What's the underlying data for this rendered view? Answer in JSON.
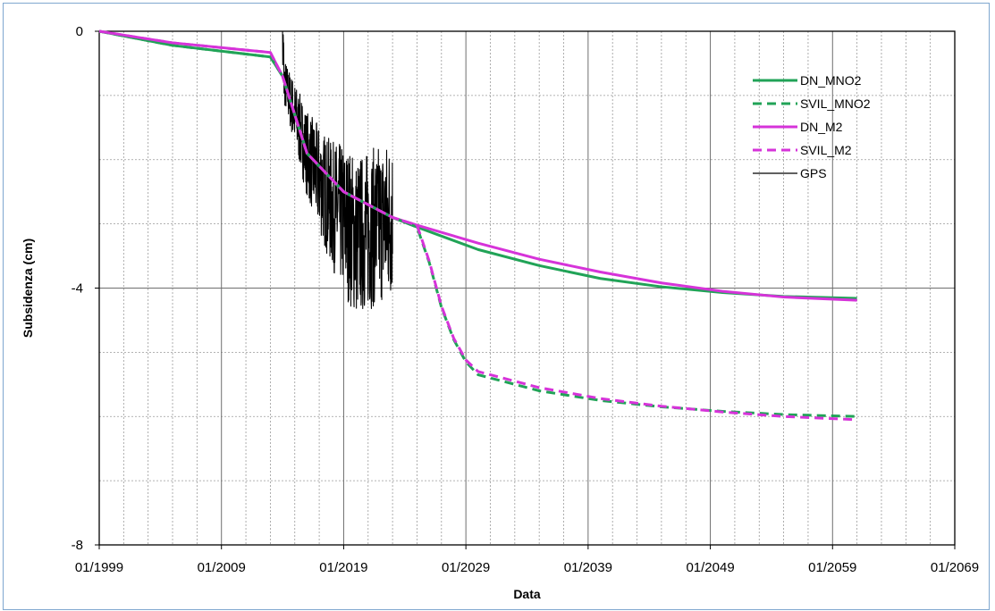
{
  "chart_data": {
    "type": "line",
    "title": "",
    "xlabel": "Data",
    "ylabel": "Subsidenza (cm)",
    "xlim": [
      "01/1999",
      "01/2069"
    ],
    "ylim": [
      -8,
      0
    ],
    "x_ticks": [
      "01/1999",
      "01/2009",
      "01/2019",
      "01/2029",
      "01/2039",
      "01/2049",
      "01/2059",
      "01/2069"
    ],
    "y_ticks": [
      "0",
      "-4",
      "-8"
    ],
    "grid": true,
    "legend_position": "top-right",
    "series": [
      {
        "name": "DN_MNO2",
        "color": "#21a357",
        "dash": "solid",
        "points": [
          [
            "01/1999",
            0
          ],
          [
            "01/2005",
            -0.22
          ],
          [
            "01/2013",
            -0.4
          ],
          [
            "01/2014",
            -0.7
          ],
          [
            "01/2016",
            -1.9
          ],
          [
            "01/2019",
            -2.5
          ],
          [
            "01/2023",
            -2.9
          ],
          [
            "01/2025",
            -3.05
          ],
          [
            "01/2030",
            -3.4
          ],
          [
            "01/2035",
            -3.65
          ],
          [
            "01/2040",
            -3.85
          ],
          [
            "01/2045",
            -3.98
          ],
          [
            "01/2050",
            -4.07
          ],
          [
            "01/2055",
            -4.13
          ],
          [
            "01/2061",
            -4.16
          ]
        ]
      },
      {
        "name": "SVIL_MNO2",
        "color": "#21a357",
        "dash": "dashed",
        "points": [
          [
            "01/1999",
            0
          ],
          [
            "01/2005",
            -0.22
          ],
          [
            "01/2013",
            -0.4
          ],
          [
            "01/2014",
            -0.7
          ],
          [
            "01/2016",
            -1.9
          ],
          [
            "01/2019",
            -2.5
          ],
          [
            "01/2023",
            -2.9
          ],
          [
            "01/2025",
            -3.05
          ],
          [
            "01/2026",
            -3.6
          ],
          [
            "01/2027",
            -4.3
          ],
          [
            "01/2028",
            -4.8
          ],
          [
            "01/2029",
            -5.15
          ],
          [
            "01/2030",
            -5.35
          ],
          [
            "01/2035",
            -5.6
          ],
          [
            "01/2040",
            -5.75
          ],
          [
            "01/2045",
            -5.85
          ],
          [
            "01/2050",
            -5.92
          ],
          [
            "01/2055",
            -5.97
          ],
          [
            "01/2061",
            -6.0
          ]
        ]
      },
      {
        "name": "DN_M2",
        "color": "#d633d9",
        "dash": "solid",
        "points": [
          [
            "01/1999",
            0
          ],
          [
            "01/2005",
            -0.18
          ],
          [
            "01/2013",
            -0.33
          ],
          [
            "01/2014",
            -0.7
          ],
          [
            "01/2016",
            -1.9
          ],
          [
            "01/2019",
            -2.5
          ],
          [
            "01/2023",
            -2.9
          ],
          [
            "01/2025",
            -3.02
          ],
          [
            "01/2030",
            -3.3
          ],
          [
            "01/2035",
            -3.55
          ],
          [
            "01/2040",
            -3.75
          ],
          [
            "01/2045",
            -3.92
          ],
          [
            "01/2050",
            -4.05
          ],
          [
            "01/2055",
            -4.14
          ],
          [
            "01/2061",
            -4.19
          ]
        ]
      },
      {
        "name": "SVIL_M2",
        "color": "#d633d9",
        "dash": "dashed",
        "points": [
          [
            "01/1999",
            0
          ],
          [
            "01/2005",
            -0.18
          ],
          [
            "01/2013",
            -0.33
          ],
          [
            "01/2014",
            -0.7
          ],
          [
            "01/2016",
            -1.9
          ],
          [
            "01/2019",
            -2.5
          ],
          [
            "01/2023",
            -2.9
          ],
          [
            "01/2025",
            -3.02
          ],
          [
            "01/2026",
            -3.58
          ],
          [
            "01/2027",
            -4.28
          ],
          [
            "01/2028",
            -4.78
          ],
          [
            "01/2029",
            -5.12
          ],
          [
            "01/2030",
            -5.3
          ],
          [
            "01/2035",
            -5.55
          ],
          [
            "01/2040",
            -5.72
          ],
          [
            "01/2045",
            -5.84
          ],
          [
            "01/2050",
            -5.93
          ],
          [
            "01/2055",
            -6.0
          ],
          [
            "01/2061",
            -6.05
          ]
        ]
      },
      {
        "name": "GPS",
        "color": "#000000",
        "dash": "solid",
        "x_range": [
          "01/2014",
          "01/2023"
        ],
        "noisy": true,
        "points": [
          [
            "01/2014",
            -0.7
          ],
          [
            "01/2015",
            -1.3
          ],
          [
            "01/2016",
            -1.9
          ],
          [
            "01/2017",
            -2.3
          ],
          [
            "01/2018",
            -2.7
          ],
          [
            "01/2019",
            -2.9
          ],
          [
            "01/2020",
            -3.2
          ],
          [
            "01/2021",
            -3.1
          ],
          [
            "01/2022",
            -3.0
          ],
          [
            "01/2023",
            -2.9
          ]
        ],
        "min": -4.7,
        "max": 0
      }
    ]
  }
}
